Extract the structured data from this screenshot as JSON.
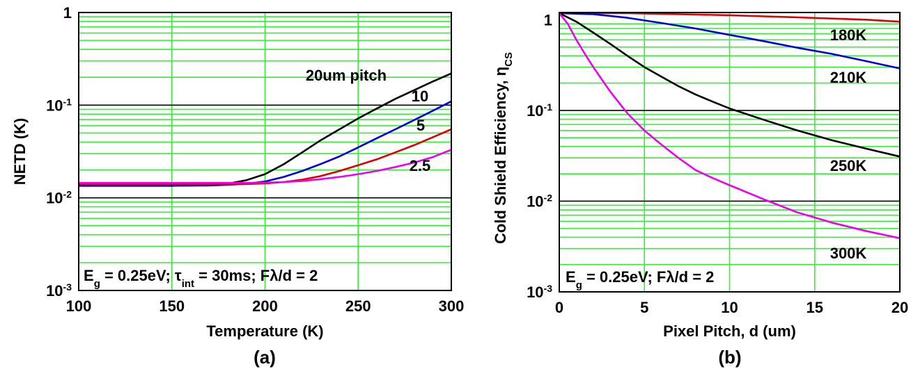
{
  "chart_data": [
    {
      "type": "line",
      "panel_label": "(a)",
      "xlabel": "Temperature (K)",
      "ylabel": "NETD (K)",
      "xlim": [
        100,
        300
      ],
      "ylim": [
        0.001,
        1
      ],
      "yscale": "log",
      "grid": true,
      "x_ticks": [
        "100",
        "150",
        "200",
        "250",
        "300"
      ],
      "y_ticks": [
        {
          "base": "1",
          "exp": ""
        },
        {
          "base": "10",
          "exp": "-1"
        },
        {
          "base": "10",
          "exp": "-2"
        },
        {
          "base": "10",
          "exp": "-3"
        }
      ],
      "annotation": {
        "parts": [
          {
            "t": "E",
            "s": ""
          },
          {
            "t": "g",
            "s": "sub"
          },
          {
            "t": " = 0.25eV; τ",
            "s": ""
          },
          {
            "t": "int",
            "s": "sub"
          },
          {
            "t": " = 30ms; Fλ/d = 2",
            "s": ""
          }
        ]
      },
      "series": [
        {
          "name": "20um pitch",
          "color": "#000000",
          "x": [
            100,
            150,
            170,
            180,
            190,
            200,
            210,
            220,
            230,
            240,
            250,
            260,
            270,
            280,
            290,
            300
          ],
          "y": [
            0.0135,
            0.0135,
            0.0137,
            0.0142,
            0.0155,
            0.018,
            0.023,
            0.031,
            0.042,
            0.055,
            0.072,
            0.092,
            0.117,
            0.145,
            0.18,
            0.22
          ]
        },
        {
          "name": "10",
          "color": "#0000dd",
          "x": [
            100,
            150,
            170,
            180,
            190,
            200,
            210,
            220,
            230,
            240,
            250,
            260,
            270,
            280,
            290,
            300
          ],
          "y": [
            0.0135,
            0.0135,
            0.0136,
            0.0138,
            0.0142,
            0.015,
            0.0168,
            0.0195,
            0.0232,
            0.028,
            0.035,
            0.044,
            0.055,
            0.069,
            0.087,
            0.11
          ]
        },
        {
          "name": "5",
          "color": "#dd0000",
          "x": [
            100,
            150,
            170,
            180,
            190,
            200,
            210,
            220,
            230,
            240,
            250,
            260,
            270,
            280,
            290,
            300
          ],
          "y": [
            0.014,
            0.014,
            0.014,
            0.014,
            0.0141,
            0.0143,
            0.0148,
            0.0157,
            0.0172,
            0.0195,
            0.0225,
            0.026,
            0.031,
            0.037,
            0.045,
            0.055
          ]
        },
        {
          "name": "2.5",
          "color": "#ee00ee",
          "x": [
            100,
            150,
            170,
            180,
            190,
            200,
            210,
            220,
            230,
            240,
            250,
            260,
            270,
            280,
            290,
            300
          ],
          "y": [
            0.0145,
            0.0145,
            0.0145,
            0.0145,
            0.0145,
            0.0146,
            0.0148,
            0.0152,
            0.0159,
            0.0168,
            0.018,
            0.0195,
            0.0215,
            0.024,
            0.0275,
            0.033
          ]
        }
      ]
    },
    {
      "type": "line",
      "panel_label": "(b)",
      "xlabel": "Pixel Pitch, d (um)",
      "ylabel": "Cold Shield Efficiency, η",
      "ylabel_sub": "CS",
      "xlim": [
        0,
        20
      ],
      "ylim": [
        0.001,
        1.2
      ],
      "yscale": "log",
      "grid": true,
      "x_ticks": [
        "0",
        "5",
        "10",
        "15",
        "20"
      ],
      "y_ticks": [
        {
          "base": "1",
          "exp": ""
        },
        {
          "base": "10",
          "exp": "-1"
        },
        {
          "base": "10",
          "exp": "-2"
        },
        {
          "base": "10",
          "exp": "-3"
        }
      ],
      "annotation": {
        "parts": [
          {
            "t": "E",
            "s": ""
          },
          {
            "t": "g",
            "s": "sub"
          },
          {
            "t": " = 0.25eV; Fλ/d = 2",
            "s": ""
          }
        ]
      },
      "series": [
        {
          "name": "180K",
          "color": "#dd0000",
          "x": [
            0,
            2,
            4,
            6,
            8,
            10,
            12,
            14,
            16,
            18,
            20
          ],
          "y": [
            1.2,
            1.19,
            1.18,
            1.16,
            1.14,
            1.12,
            1.09,
            1.06,
            1.03,
            1.0,
            0.95
          ]
        },
        {
          "name": "210K",
          "color": "#0000dd",
          "x": [
            0,
            2,
            4,
            6,
            8,
            10,
            12,
            14,
            16,
            18,
            20
          ],
          "y": [
            1.2,
            1.15,
            1.05,
            0.92,
            0.8,
            0.68,
            0.58,
            0.49,
            0.42,
            0.35,
            0.29
          ]
        },
        {
          "name": "250K",
          "color": "#000000",
          "x": [
            0,
            1,
            2,
            3,
            4,
            5,
            6,
            7,
            8,
            9,
            10,
            12,
            14,
            16,
            18,
            20
          ],
          "y": [
            1.2,
            0.95,
            0.72,
            0.54,
            0.4,
            0.3,
            0.235,
            0.185,
            0.15,
            0.125,
            0.105,
            0.079,
            0.06,
            0.047,
            0.038,
            0.031
          ]
        },
        {
          "name": "300K",
          "color": "#ee00ee",
          "x": [
            0,
            0.5,
            1,
            1.5,
            2,
            3,
            4,
            5,
            6,
            7,
            8,
            9,
            10,
            12,
            14,
            16,
            18,
            20
          ],
          "y": [
            1.2,
            0.9,
            0.6,
            0.42,
            0.3,
            0.16,
            0.093,
            0.06,
            0.042,
            0.03,
            0.022,
            0.018,
            0.015,
            0.0105,
            0.0075,
            0.0058,
            0.0047,
            0.0039
          ]
        }
      ]
    }
  ],
  "colors": {
    "grid_major": "#000000",
    "grid_minor": "#33ee33",
    "background": "#ffffff"
  }
}
